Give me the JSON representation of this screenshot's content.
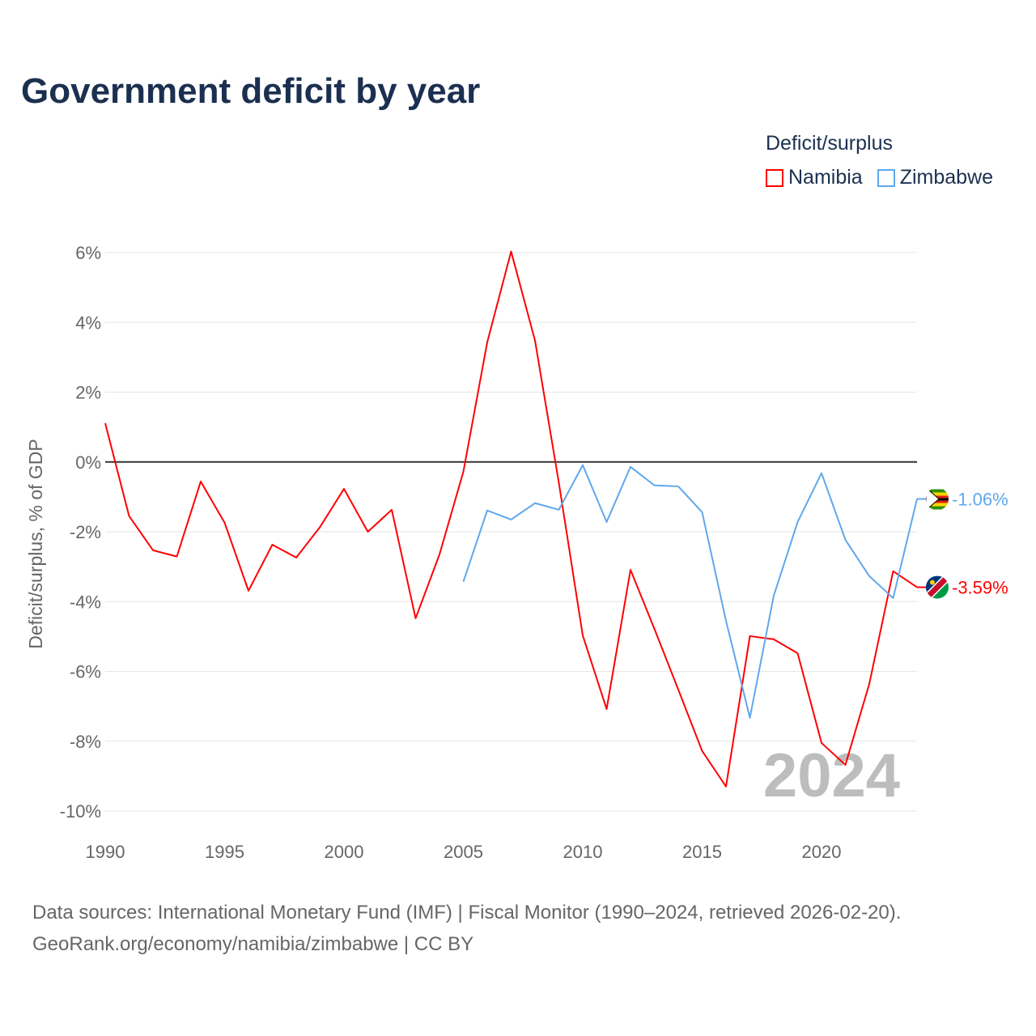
{
  "header": {
    "title": "Government deficit by year"
  },
  "legend": {
    "title": "Deficit/surplus",
    "items": [
      "Namibia",
      "Zimbabwe"
    ]
  },
  "footer": {
    "line1": "Data sources: International Monetary Fund (IMF) | Fiscal Monitor (1990–2024, retrieved 2026-02-20).",
    "line2": "GeoRank.org/economy/namibia/zimbabwe | CC BY"
  },
  "chart_data": {
    "type": "line",
    "title": "Government deficit by year",
    "xlabel": "",
    "ylabel": "Deficit/surplus, % of GDP",
    "xlim": [
      1990,
      2024
    ],
    "ylim": [
      -10,
      6
    ],
    "x_ticks": [
      1990,
      1995,
      2000,
      2005,
      2010,
      2015,
      2020
    ],
    "y_ticks": [
      6,
      4,
      2,
      0,
      -2,
      -4,
      -6,
      -8,
      -10
    ],
    "y_tick_labels": [
      "6%",
      "4%",
      "2%",
      "0%",
      "-2%",
      "-4%",
      "-6%",
      "-8%",
      "-10%"
    ],
    "watermark_year": "2024",
    "grid": true,
    "legend_position": "top-right",
    "series": [
      {
        "name": "Namibia",
        "color": "#ff0000",
        "end_label": "-3.59%",
        "x": [
          1990,
          1991,
          1992,
          1993,
          1994,
          1995,
          1996,
          1997,
          1998,
          1999,
          2000,
          2001,
          2002,
          2003,
          2004,
          2005,
          2006,
          2007,
          2008,
          2009,
          2010,
          2011,
          2012,
          2013,
          2014,
          2015,
          2016,
          2017,
          2018,
          2019,
          2020,
          2021,
          2022,
          2023,
          2024
        ],
        "values": [
          1.11,
          -1.55,
          -2.53,
          -2.71,
          -0.56,
          -1.74,
          -3.69,
          -2.37,
          -2.74,
          -1.86,
          -0.77,
          -2.0,
          -1.37,
          -4.48,
          -2.65,
          -0.28,
          3.43,
          6.03,
          3.48,
          -0.6,
          -4.97,
          -7.08,
          -3.09,
          -4.78,
          -6.52,
          -8.28,
          -9.3,
          -4.99,
          -5.08,
          -5.48,
          -8.05,
          -8.68,
          -6.36,
          -3.13,
          -3.59
        ]
      },
      {
        "name": "Zimbabwe",
        "color": "#5fa8ec",
        "end_label": "-1.06%",
        "x": [
          2005,
          2006,
          2007,
          2008,
          2009,
          2010,
          2011,
          2012,
          2013,
          2014,
          2015,
          2016,
          2017,
          2018,
          2019,
          2020,
          2021,
          2022,
          2023,
          2024
        ],
        "values": [
          -3.43,
          -1.39,
          -1.65,
          -1.18,
          -1.37,
          -0.09,
          -1.72,
          -0.14,
          -0.67,
          -0.7,
          -1.44,
          -4.55,
          -7.33,
          -3.83,
          -1.72,
          -0.32,
          -2.23,
          -3.27,
          -3.9,
          -1.06
        ]
      }
    ]
  }
}
